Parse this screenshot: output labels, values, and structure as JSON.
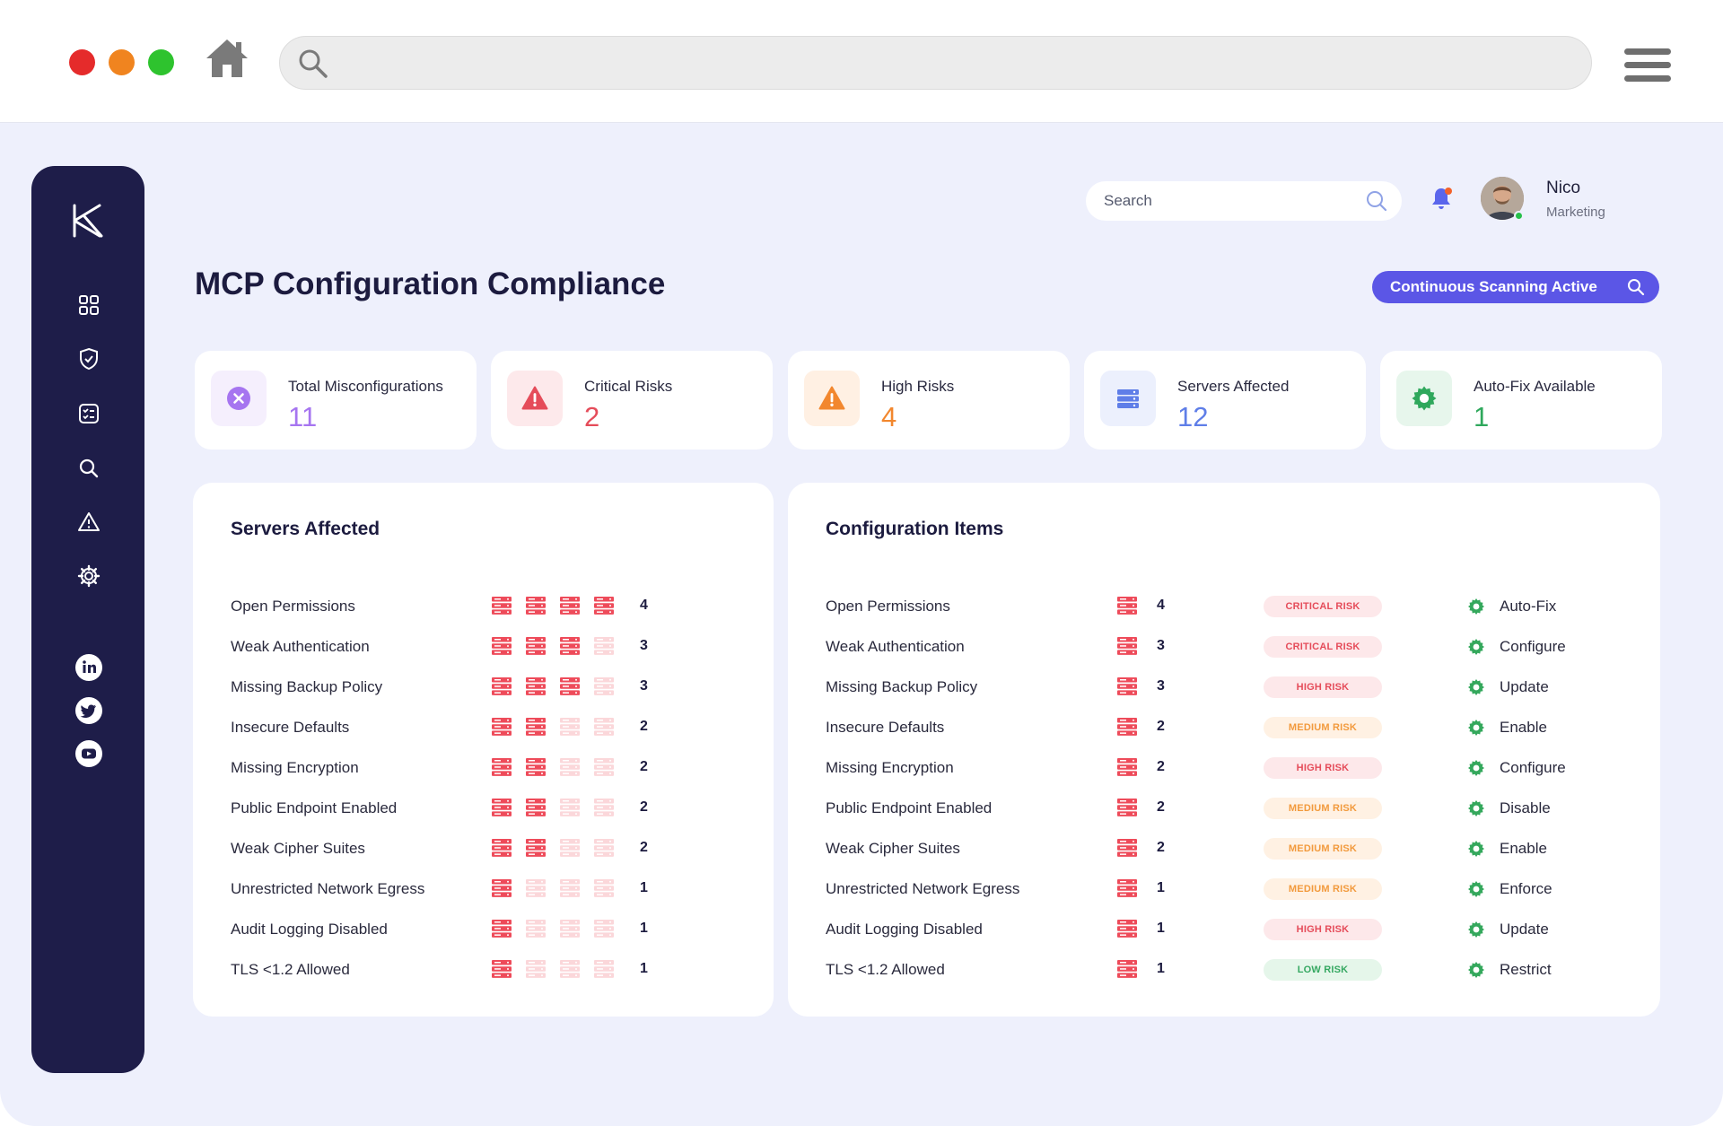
{
  "topbar": {
    "search_placeholder": "Search",
    "user_name": "Nico",
    "user_role": "Marketing"
  },
  "page": {
    "title": "MCP Configuration Compliance",
    "scan_status": "Continuous Scanning Active"
  },
  "stats": [
    {
      "label": "Total Misconfigurations",
      "value": "11",
      "icon": "x-circle-icon",
      "color": "#a675f0",
      "bg": "#f5effd"
    },
    {
      "label": "Critical Risks",
      "value": "2",
      "icon": "warning-icon",
      "color": "#e54c5a",
      "bg": "#fde9eb"
    },
    {
      "label": "High Risks",
      "value": "4",
      "icon": "warning-icon",
      "color": "#f2872e",
      "bg": "#fff0e3"
    },
    {
      "label": "Servers Affected",
      "value": "12",
      "icon": "server-icon",
      "color": "#5f7ee8",
      "bg": "#ecf0fd"
    },
    {
      "label": "Auto-Fix Available",
      "value": "1",
      "icon": "gear-icon",
      "color": "#2fa85c",
      "bg": "#e7f6ec"
    }
  ],
  "servers_panel": {
    "title": "Servers Affected",
    "rows": [
      {
        "name": "Open Permissions",
        "count": "4",
        "servers": 4
      },
      {
        "name": "Weak Authentication",
        "count": "3",
        "servers": 3
      },
      {
        "name": "Missing Backup Policy",
        "count": "3",
        "servers": 3
      },
      {
        "name": "Insecure Defaults",
        "count": "2",
        "servers": 2
      },
      {
        "name": "Missing Encryption",
        "count": "2",
        "servers": 2
      },
      {
        "name": "Public Endpoint Enabled",
        "count": "2",
        "servers": 2
      },
      {
        "name": "Weak Cipher Suites",
        "count": "2",
        "servers": 2
      },
      {
        "name": "Unrestricted Network Egress",
        "count": "1",
        "servers": 1
      },
      {
        "name": "Audit Logging Disabled",
        "count": "1",
        "servers": 1
      },
      {
        "name": "TLS <1.2 Allowed",
        "count": "1",
        "servers": 1
      }
    ]
  },
  "config_panel": {
    "title": "Configuration Items",
    "rows": [
      {
        "name": "Open Permissions",
        "count": "4",
        "risk": "CRITICAL RISK",
        "level": "critical",
        "action": "Auto-Fix"
      },
      {
        "name": "Weak Authentication",
        "count": "3",
        "risk": "CRITICAL RISK",
        "level": "critical",
        "action": "Configure"
      },
      {
        "name": "Missing Backup Policy",
        "count": "3",
        "risk": "HIGH RISK",
        "level": "high",
        "action": "Update"
      },
      {
        "name": "Insecure Defaults",
        "count": "2",
        "risk": "MEDIUM RISK",
        "level": "medium",
        "action": "Enable"
      },
      {
        "name": "Missing Encryption",
        "count": "2",
        "risk": "HIGH RISK",
        "level": "high",
        "action": "Configure"
      },
      {
        "name": "Public Endpoint Enabled",
        "count": "2",
        "risk": "MEDIUM RISK",
        "level": "medium",
        "action": "Disable"
      },
      {
        "name": "Weak Cipher Suites",
        "count": "2",
        "risk": "MEDIUM RISK",
        "level": "medium",
        "action": "Enable"
      },
      {
        "name": "Unrestricted Network Egress",
        "count": "1",
        "risk": "MEDIUM RISK",
        "level": "medium",
        "action": "Enforce"
      },
      {
        "name": "Audit Logging Disabled",
        "count": "1",
        "risk": "HIGH RISK",
        "level": "high",
        "action": "Update"
      },
      {
        "name": "TLS <1.2 Allowed",
        "count": "1",
        "risk": "LOW RISK",
        "level": "low",
        "action": "Restrict"
      }
    ]
  },
  "sidebar": {
    "nav": [
      "dashboard-icon",
      "shield-icon",
      "checklist-icon",
      "search-icon",
      "alert-icon",
      "gear-icon"
    ],
    "social": [
      "linkedin-icon",
      "twitter-icon",
      "youtube-icon"
    ]
  }
}
